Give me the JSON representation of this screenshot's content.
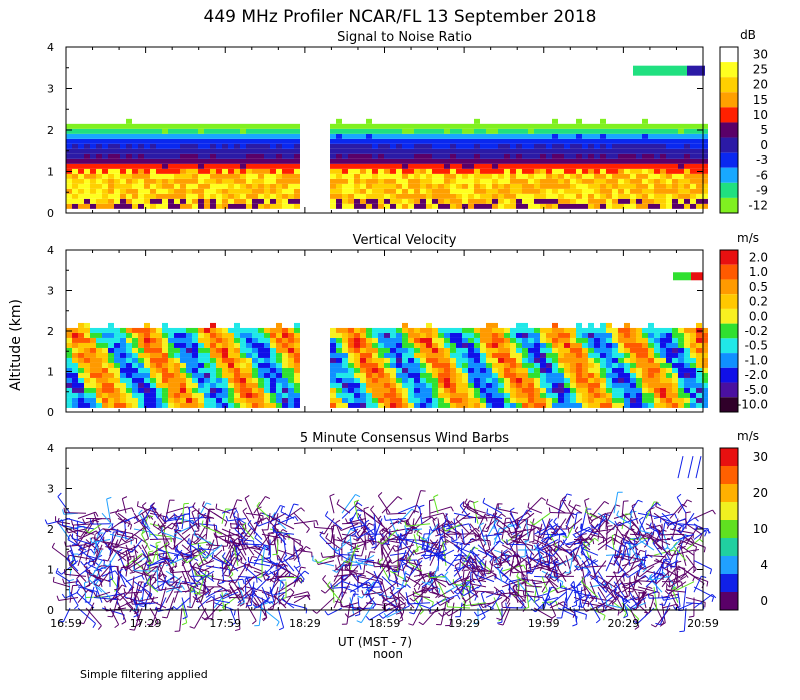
{
  "title": "449 MHz Profiler NCAR/FL 13 September 2018",
  "ylabel": "Altitude (km)",
  "xlabel": "UT  (MST - 7)",
  "xlabel_sub": "noon",
  "footer_note": "Simple filtering applied",
  "x_ticks": [
    "16:59",
    "17:29",
    "17:59",
    "18:29",
    "18:59",
    "19:29",
    "19:59",
    "20:29",
    "20:59"
  ],
  "y_ticks": [
    "0",
    "1",
    "2",
    "3",
    "4"
  ],
  "chart_data": [
    {
      "type": "heatmap",
      "title": "Signal to Noise Ratio",
      "unit": "dB",
      "ylim": [
        0,
        4
      ],
      "color_scale": [
        {
          "label": "30",
          "color": "#ffffff"
        },
        {
          "label": "25",
          "color": "#ffff20"
        },
        {
          "label": "20",
          "color": "#ffd000"
        },
        {
          "label": "15",
          "color": "#ffa000"
        },
        {
          "label": "10",
          "color": "#ff2000"
        },
        {
          "label": "5",
          "color": "#5a0068"
        },
        {
          "label": "0",
          "color": "#2b1aa6"
        },
        {
          "label": "-3",
          "color": "#0a28f0"
        },
        {
          "label": "-6",
          "color": "#18a8ff"
        },
        {
          "label": "-9",
          "color": "#20e080"
        },
        {
          "label": "-12",
          "color": "#80f020"
        }
      ],
      "data_top_km": 2.1,
      "data_gap_ut": [
        "18:29",
        "18:39"
      ],
      "upper_echo_km": 3.4
    },
    {
      "type": "heatmap",
      "title": "Vertical Velocity",
      "unit": "m/s",
      "ylim": [
        0,
        4
      ],
      "color_scale": [
        {
          "label": "2.0",
          "color": "#e81010"
        },
        {
          "label": "1.0",
          "color": "#ff5a00"
        },
        {
          "label": "0.5",
          "color": "#ff9a00"
        },
        {
          "label": "0.2",
          "color": "#ffc800"
        },
        {
          "label": "0.0",
          "color": "#f8f020"
        },
        {
          "label": "-0.2",
          "color": "#30e030"
        },
        {
          "label": "-0.5",
          "color": "#20e8e8"
        },
        {
          "label": "-1.0",
          "color": "#1090ff"
        },
        {
          "label": "-2.0",
          "color": "#1010e8"
        },
        {
          "label": "-5.0",
          "color": "#4a10a0"
        },
        {
          "label": "-10.0",
          "color": "#30002a"
        }
      ],
      "data_top_km": 2.05,
      "data_gap_ut": [
        "18:29",
        "18:39"
      ]
    },
    {
      "type": "scatter",
      "title": "5 Minute Consensus Wind Barbs",
      "unit": "m/s",
      "ylim": [
        0,
        4
      ],
      "color_scale": [
        {
          "label": "30",
          "color": "#e81010"
        },
        {
          "label": "",
          "color": "#ff6000"
        },
        {
          "label": "20",
          "color": "#ffb000"
        },
        {
          "label": "",
          "color": "#f0f020"
        },
        {
          "label": "10",
          "color": "#60e020"
        },
        {
          "label": "",
          "color": "#20d0a0"
        },
        {
          "label": "4",
          "color": "#20a0ff"
        },
        {
          "label": "",
          "color": "#1020e8"
        },
        {
          "label": "0",
          "color": "#5a0068"
        }
      ],
      "barb_top_km": 2.5,
      "data_gap_ut": [
        "18:29",
        "18:39"
      ],
      "upper_barbs_km": 3.8
    }
  ]
}
